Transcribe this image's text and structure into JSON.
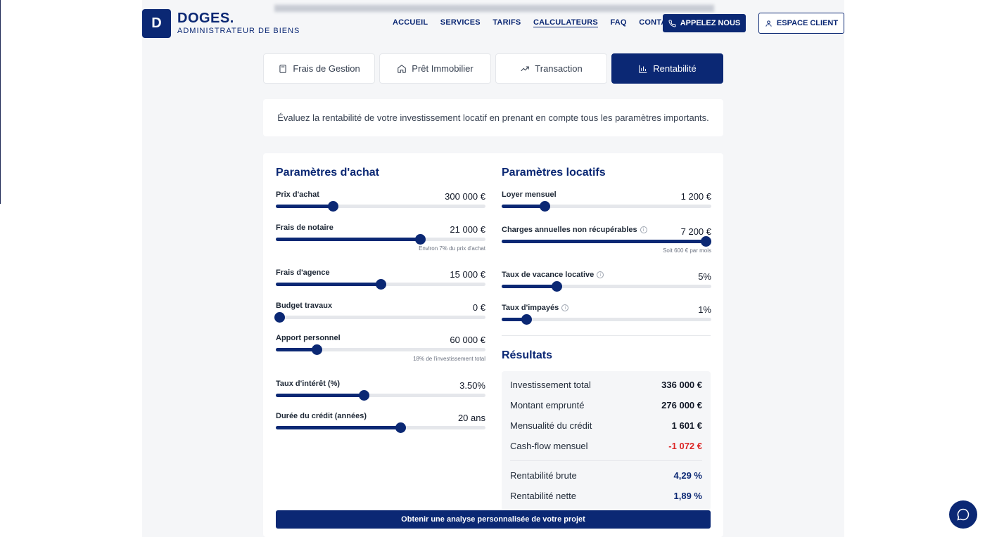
{
  "header": {
    "logo_letter": "D",
    "brand": "DOGES.",
    "tagline": "ADMINISTRATEUR DE BIENS",
    "nav": [
      "ACCUEIL",
      "SERVICES",
      "TARIFS",
      "CALCULATEURS",
      "FAQ",
      "CONTACT"
    ],
    "active_nav": "CALCULATEURS",
    "call_label": "APPELEZ NOUS",
    "client_label": "ESPACE CLIENT"
  },
  "tabs": [
    {
      "label": "Frais de Gestion",
      "icon": "calculator-icon"
    },
    {
      "label": "Prêt Immobilier",
      "icon": "home-icon"
    },
    {
      "label": "Transaction",
      "icon": "trending-up-icon"
    },
    {
      "label": "Rentabilité",
      "icon": "bar-chart-icon"
    }
  ],
  "active_tab": "Rentabilité",
  "intro": "Évaluez la rentabilité de votre investissement locatif en prenant en compte tous les paramètres importants.",
  "achat": {
    "title": "Paramètres d'achat",
    "params": [
      {
        "label": "Prix d'achat",
        "value": "300 000 €",
        "level": 0.275
      },
      {
        "label": "Frais de notaire",
        "value": "21 000 €",
        "level": 0.69,
        "hint": "Environ 7% du prix d'achat"
      },
      {
        "label": "Frais d'agence",
        "value": "15 000 €",
        "level": 0.5
      },
      {
        "label": "Budget travaux",
        "value": "0 €",
        "level": 0.02
      },
      {
        "label": "Apport personnel",
        "value": "60 000 €",
        "level": 0.195,
        "hint": "18% de l'investissement total"
      },
      {
        "label": "Taux d'intérêt (%)",
        "value": "3.50%",
        "level": 0.42
      },
      {
        "label": "Durée du crédit (années)",
        "value": "20 ans",
        "level": 0.595
      }
    ]
  },
  "locatif": {
    "title": "Paramètres locatifs",
    "params": [
      {
        "label": "Loyer mensuel",
        "value": "1 200 €",
        "level": 0.205
      },
      {
        "label": "Charges annuelles non récupérables",
        "value": "7 200 €",
        "level": 0.975,
        "hint": "Soit 600 € par mois",
        "info": true
      },
      {
        "label": "Taux de vacance locative",
        "value": "5%",
        "level": 0.262,
        "info": true
      },
      {
        "label": "Taux d'impayés",
        "value": "1%",
        "level": 0.12,
        "info": true
      }
    ]
  },
  "resultats": {
    "title": "Résultats",
    "rows": [
      {
        "label": "Investissement total",
        "value": "336 000 €",
        "style": ""
      },
      {
        "label": "Montant emprunté",
        "value": "276 000 €",
        "style": ""
      },
      {
        "label": "Mensualité du crédit",
        "value": "1 601 €",
        "style": ""
      },
      {
        "label": "Cash-flow mensuel",
        "value": "-1 072 €",
        "style": "neg"
      },
      {
        "label": "Rentabilité brute",
        "value": "4,29 %",
        "style": "blue"
      },
      {
        "label": "Rentabilité nette",
        "value": "1,89 %",
        "style": "blue"
      }
    ]
  },
  "cta_label": "Obtenir une analyse personnalisée de votre projet",
  "colors": {
    "primary": "#0b2874",
    "negative": "#dc2626",
    "page_bg": "#f5f6f8"
  }
}
